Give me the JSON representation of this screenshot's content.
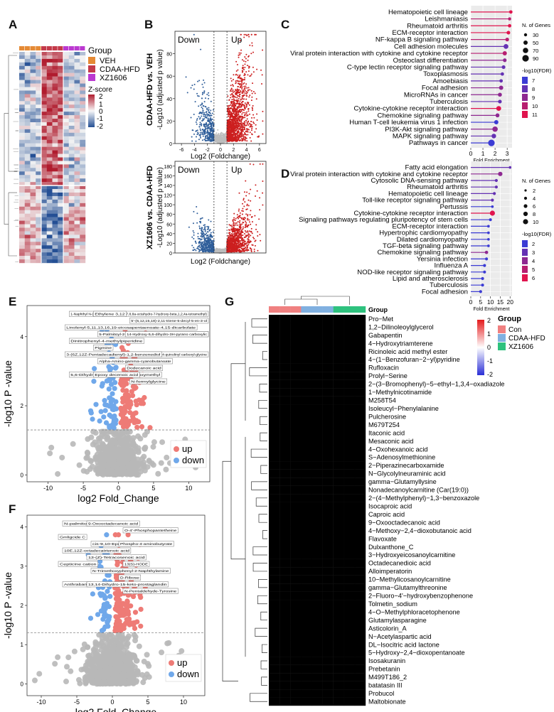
{
  "panel_letters": {
    "a": "A",
    "b": "B",
    "c": "C",
    "d": "D",
    "e": "E",
    "f": "F",
    "g": "G"
  },
  "colors": {
    "veh": "#e58a35",
    "cdaa": "#c43a4a",
    "xz": "#bb39d0",
    "up": "#cc1f1f",
    "down": "#2f5e9a",
    "ns": "#bdbdbd",
    "e_up": "#ee7b76",
    "e_down": "#70a8ea",
    "e_ns": "#b8b8b8"
  },
  "panelA": {
    "group_title": "Group",
    "groups": [
      "VEH",
      "CDAA-HFD",
      "XZ1606"
    ],
    "zscore_title": "Z-score",
    "zscore_ticks": [
      "2",
      "1",
      "0",
      "-1",
      "-2"
    ]
  },
  "chart_data": [
    {
      "id": "B_top",
      "type": "scatter",
      "title": "CDAA-HFD vs. VEH",
      "xlabel": "Log2 (Foldchange)",
      "ylabel": "-Log10 (adjusted p value)",
      "xlim": [
        -7,
        7
      ],
      "ylim": [
        0,
        100
      ],
      "xticks": [
        "-6",
        "-4",
        "-2",
        "0",
        "2",
        "4",
        "6"
      ],
      "yticks": [
        "0",
        "20",
        "40",
        "60",
        "80"
      ],
      "annotations": [
        "Down",
        "Up"
      ],
      "thresholds": {
        "fc": [
          -1,
          1
        ]
      }
    },
    {
      "id": "B_bottom",
      "type": "scatter",
      "title": "XZ1606 vs. CDAA-HFD",
      "xlabel": "Log2 (Foldchange)",
      "ylabel": "-Log10 (adjusted p value)",
      "xlim": [
        -7,
        7
      ],
      "ylim": [
        0,
        190
      ],
      "yticks": [
        "0",
        "20",
        "40",
        "60",
        "80",
        "100",
        "120",
        "140",
        "160",
        "180"
      ],
      "annotations": [
        "Down",
        "Up"
      ],
      "thresholds": {
        "fc": [
          -1,
          1
        ]
      }
    },
    {
      "id": "C",
      "type": "lollipop",
      "xlabel": "Fold Enrichment",
      "xlim": [
        0,
        3.4
      ],
      "xticks": [
        "0",
        "1",
        "2",
        "3"
      ],
      "categories": [
        "Hematopoietic cell lineage",
        "Leishmaniasis",
        "Rheumatoid arthritis",
        "ECM-receptor interaction",
        "NF-kappa B signaling pathway",
        "Cell adhesion molecules",
        "Viral protein interaction with cytokine and cytokine receptor",
        "Osteoclast differentiation",
        "C-type lectin receptor signaling pathway",
        "Toxoplasmosis",
        "Amoebiasis",
        "Focal adhesion",
        "MicroRNAs in cancer",
        "Tuberculosis",
        "Cytokine-cytokine receptor interaction",
        "Chemokine signaling pathway",
        "Human T-cell leukemia virus 1 infection",
        "PI3K-Akt signaling pathway",
        "MAPK signaling pathway",
        "Pathways in cancer"
      ],
      "values": [
        3.3,
        3.2,
        3.2,
        3.1,
        3.0,
        2.9,
        2.8,
        2.8,
        2.7,
        2.6,
        2.5,
        2.5,
        2.4,
        2.4,
        2.3,
        2.2,
        2.1,
        2.0,
        1.9,
        1.7
      ],
      "fdr": [
        11,
        10,
        11,
        11,
        10,
        8,
        10,
        9,
        8,
        8,
        8,
        9,
        9,
        8,
        11,
        9,
        7,
        9,
        8,
        7
      ],
      "genes": [
        35,
        30,
        35,
        40,
        40,
        60,
        50,
        40,
        40,
        35,
        35,
        50,
        45,
        40,
        60,
        45,
        50,
        70,
        55,
        90
      ],
      "size_legend_title": "N. of Genes",
      "size_legend": [
        "30",
        "50",
        "70",
        "90"
      ],
      "color_legend_title": "-log10(FDR)",
      "color_legend": [
        "7",
        "8",
        "9",
        "10",
        "11"
      ]
    },
    {
      "id": "D",
      "type": "lollipop",
      "xlabel": "Fold Enrichment",
      "xlim": [
        0,
        21
      ],
      "xticks": [
        "0",
        "5",
        "10",
        "15",
        "20"
      ],
      "categories": [
        "Fatty acid elongation",
        "Viral protein interaction with cytokine and cytokine receptor",
        "Cytosolic DNA-sensing pathway",
        "Rheumatoid arthritis",
        "Hematopoietic cell lineage",
        "Toll-like receptor signaling pathway",
        "Pertussis",
        "Cytokine-cytokine receptor interaction",
        "Signaling pathways regulating pluripotency of stem cells",
        "ECM-receptor interaction",
        "Hypertrophic cardiomyopathy",
        "Dilated cardiomyopathy",
        "TGF-beta signaling pathway",
        "Chemokine signaling pathway",
        "Yersinia infection",
        "Influenza A",
        "NOD-like receptor signaling pathway",
        "Lipid and atherosclerosis",
        "Tuberculosis",
        "Focal adhesion"
      ],
      "values": [
        20,
        15,
        13,
        13,
        12,
        11,
        11,
        11,
        10,
        9,
        9,
        9,
        9,
        8,
        8,
        7,
        7,
        6,
        6,
        5
      ],
      "fdr": [
        3,
        4,
        3,
        3,
        3,
        3,
        2,
        6,
        2,
        2,
        2,
        2,
        2,
        4,
        2,
        2,
        2,
        2,
        2,
        2
      ],
      "genes": [
        3,
        8,
        4,
        4,
        4,
        4,
        3,
        10,
        4,
        3,
        3,
        3,
        3,
        5,
        4,
        4,
        4,
        4,
        4,
        4
      ],
      "size_legend_title": "N. of Genes",
      "size_legend": [
        "2",
        "4",
        "6",
        "8",
        "10"
      ],
      "color_legend_title": "-log10(FDR)",
      "color_legend": [
        "2",
        "3",
        "4",
        "5",
        "6"
      ]
    },
    {
      "id": "E",
      "type": "scatter",
      "xlabel": "log2 Fold_Change",
      "ylabel": "-log10 P -value",
      "xlim": [
        -13,
        13
      ],
      "ylim": [
        -0.2,
        4.9
      ],
      "xticks": [
        "-10",
        "-5",
        "0",
        "5",
        "10"
      ],
      "yticks": [
        "0",
        "2",
        "4"
      ],
      "legend": [
        "up",
        "down"
      ],
      "threshold_y": 1.3,
      "labels": [
        "1-Naphthyl N-(3-carboxy-1,2,3,4,4a,7,8,8a-octahydro-7-hydroxy-beta,1,2,4a-tetramethyl)",
        "Ethylene 3,12",
        "5'-(6,12,15,18)-2,11-triene-5-decyl-5-en-3-ol",
        "Linolenyl-5,11,13,16,19-eicosapentaenoate-4,15-dicarbolate",
        "5-Palmitoyl-2-arachidonoyl-sn-glycero-3-phosphoserine",
        "14-Hydroxy-5,6-dihydro-3H-pyrano carboxylic",
        "Dinitrophenyl-4-methylpiperidine",
        "Pigmine",
        "5-(2-Chlorophenyl)-4-quinolinyl carboxyl-glycine",
        "3-(6Z,12Z-Pentadecadienyl)-1,2-benzenediol",
        "Alpha-Amino-gamma-cyanobutanoate",
        "Dodecanoic acid",
        "5,6-Dihydroxytocotrienol-2-hydroxymethyl",
        "Epoxy decenoic acid",
        "N-formylglycine"
      ]
    },
    {
      "id": "F",
      "type": "scatter",
      "xlabel": "log2 Fold_Change",
      "ylabel": "-log10 P -value",
      "xlim": [
        -12,
        13
      ],
      "ylim": [
        -0.3,
        4.3
      ],
      "xticks": [
        "-10",
        "-5",
        "0",
        "5",
        "10"
      ],
      "yticks": [
        "0",
        "1",
        "2",
        "3",
        "4"
      ],
      "legend": [
        "up",
        "down"
      ],
      "threshold_y": 1.3,
      "labels": [
        "N-palmitoyl-histidine",
        "9-Oxooctadecanoic acid",
        "O-4'-Phosphopantetheine",
        "Gmligcide C",
        "cis-9,10-Epoxystearic acid",
        "Phospho-4-aminobutyrate",
        "10E,12Z-octadecatrienoic acid",
        "13-(Z)-Tetracosenoic acid",
        "13(S)-HODE",
        "Cepticine cation",
        "N-Trimethoxyphenyl-2-Naphthylamine",
        "D-Ribose",
        "Anthrabarin",
        "13,14-Dihydro-15-keto-prostaglandin",
        "N-Pentaldehyde-Tyrosine"
      ]
    },
    {
      "id": "G",
      "type": "heatmap",
      "legend_title": "Group",
      "legend_groups": [
        "Con",
        "CDAA-HFD",
        "XZ1606"
      ],
      "colorbar_ticks": [
        "2",
        "1",
        "0",
        "-1",
        "-2"
      ],
      "rows": [
        "Pro−Met",
        "1,2−Dilinoleoylglycerol",
        "Gabapentin",
        "4−Hydroxytriamterene",
        "Ricinoleic acid methyl ester",
        "4−(1−Benzofuran−2−yl)pyridine",
        "Rufloxacin",
        "Prolyl−Serine",
        "2−(3−Bromophenyl)−5−ethyl−1,3,4−oxadiazole",
        "1−Methylnicotinamide",
        "M258T54",
        "Isoleucyl−Phenylalanine",
        "Pulcherosine",
        "M679T254",
        "Itaconic acid",
        "Mesaconic acid",
        "4−Oxohexanoic acid",
        "S−Adenosylmethionine",
        "2−Piperazinecarboxamide",
        "N−Glycolylneuraminic acid",
        "gamma−Glutamyllysine",
        "Nonadecanoylcarnitine (Car(19:0))",
        "2−(4−Methylphenyl)−1,3−benzoxazole",
        "Isocaproic acid",
        "Caproic acid",
        "9−Oxooctadecanoic acid",
        "4−Methoxy−2,4−dioxobutanoic acid",
        "Flavoxate",
        "Dulxanthone_C",
        "3−Hydroxyeicosanoylcarnitine",
        "Octadecanedioic acid",
        "Alloimperatorin",
        "10−Methylicosanoylcarnitine",
        "gamma−Glutamylthreonine",
        "2−Fluoro−4'−hydroxybenzophenone",
        "Tolmetin_sodium",
        "4−O−Methylphloracetophenone",
        "Glutamylasparagine",
        "Asticolorin_A",
        "N−Acetylaspartic acid",
        "DL−Isocitric acid lactone",
        "5−Hydroxy−2,4−dioxopentanoate",
        "Isosakuranin",
        "Prebetanin",
        "M499T186_2",
        "batatasin III",
        "Probucol",
        "Maltobionate"
      ]
    }
  ]
}
